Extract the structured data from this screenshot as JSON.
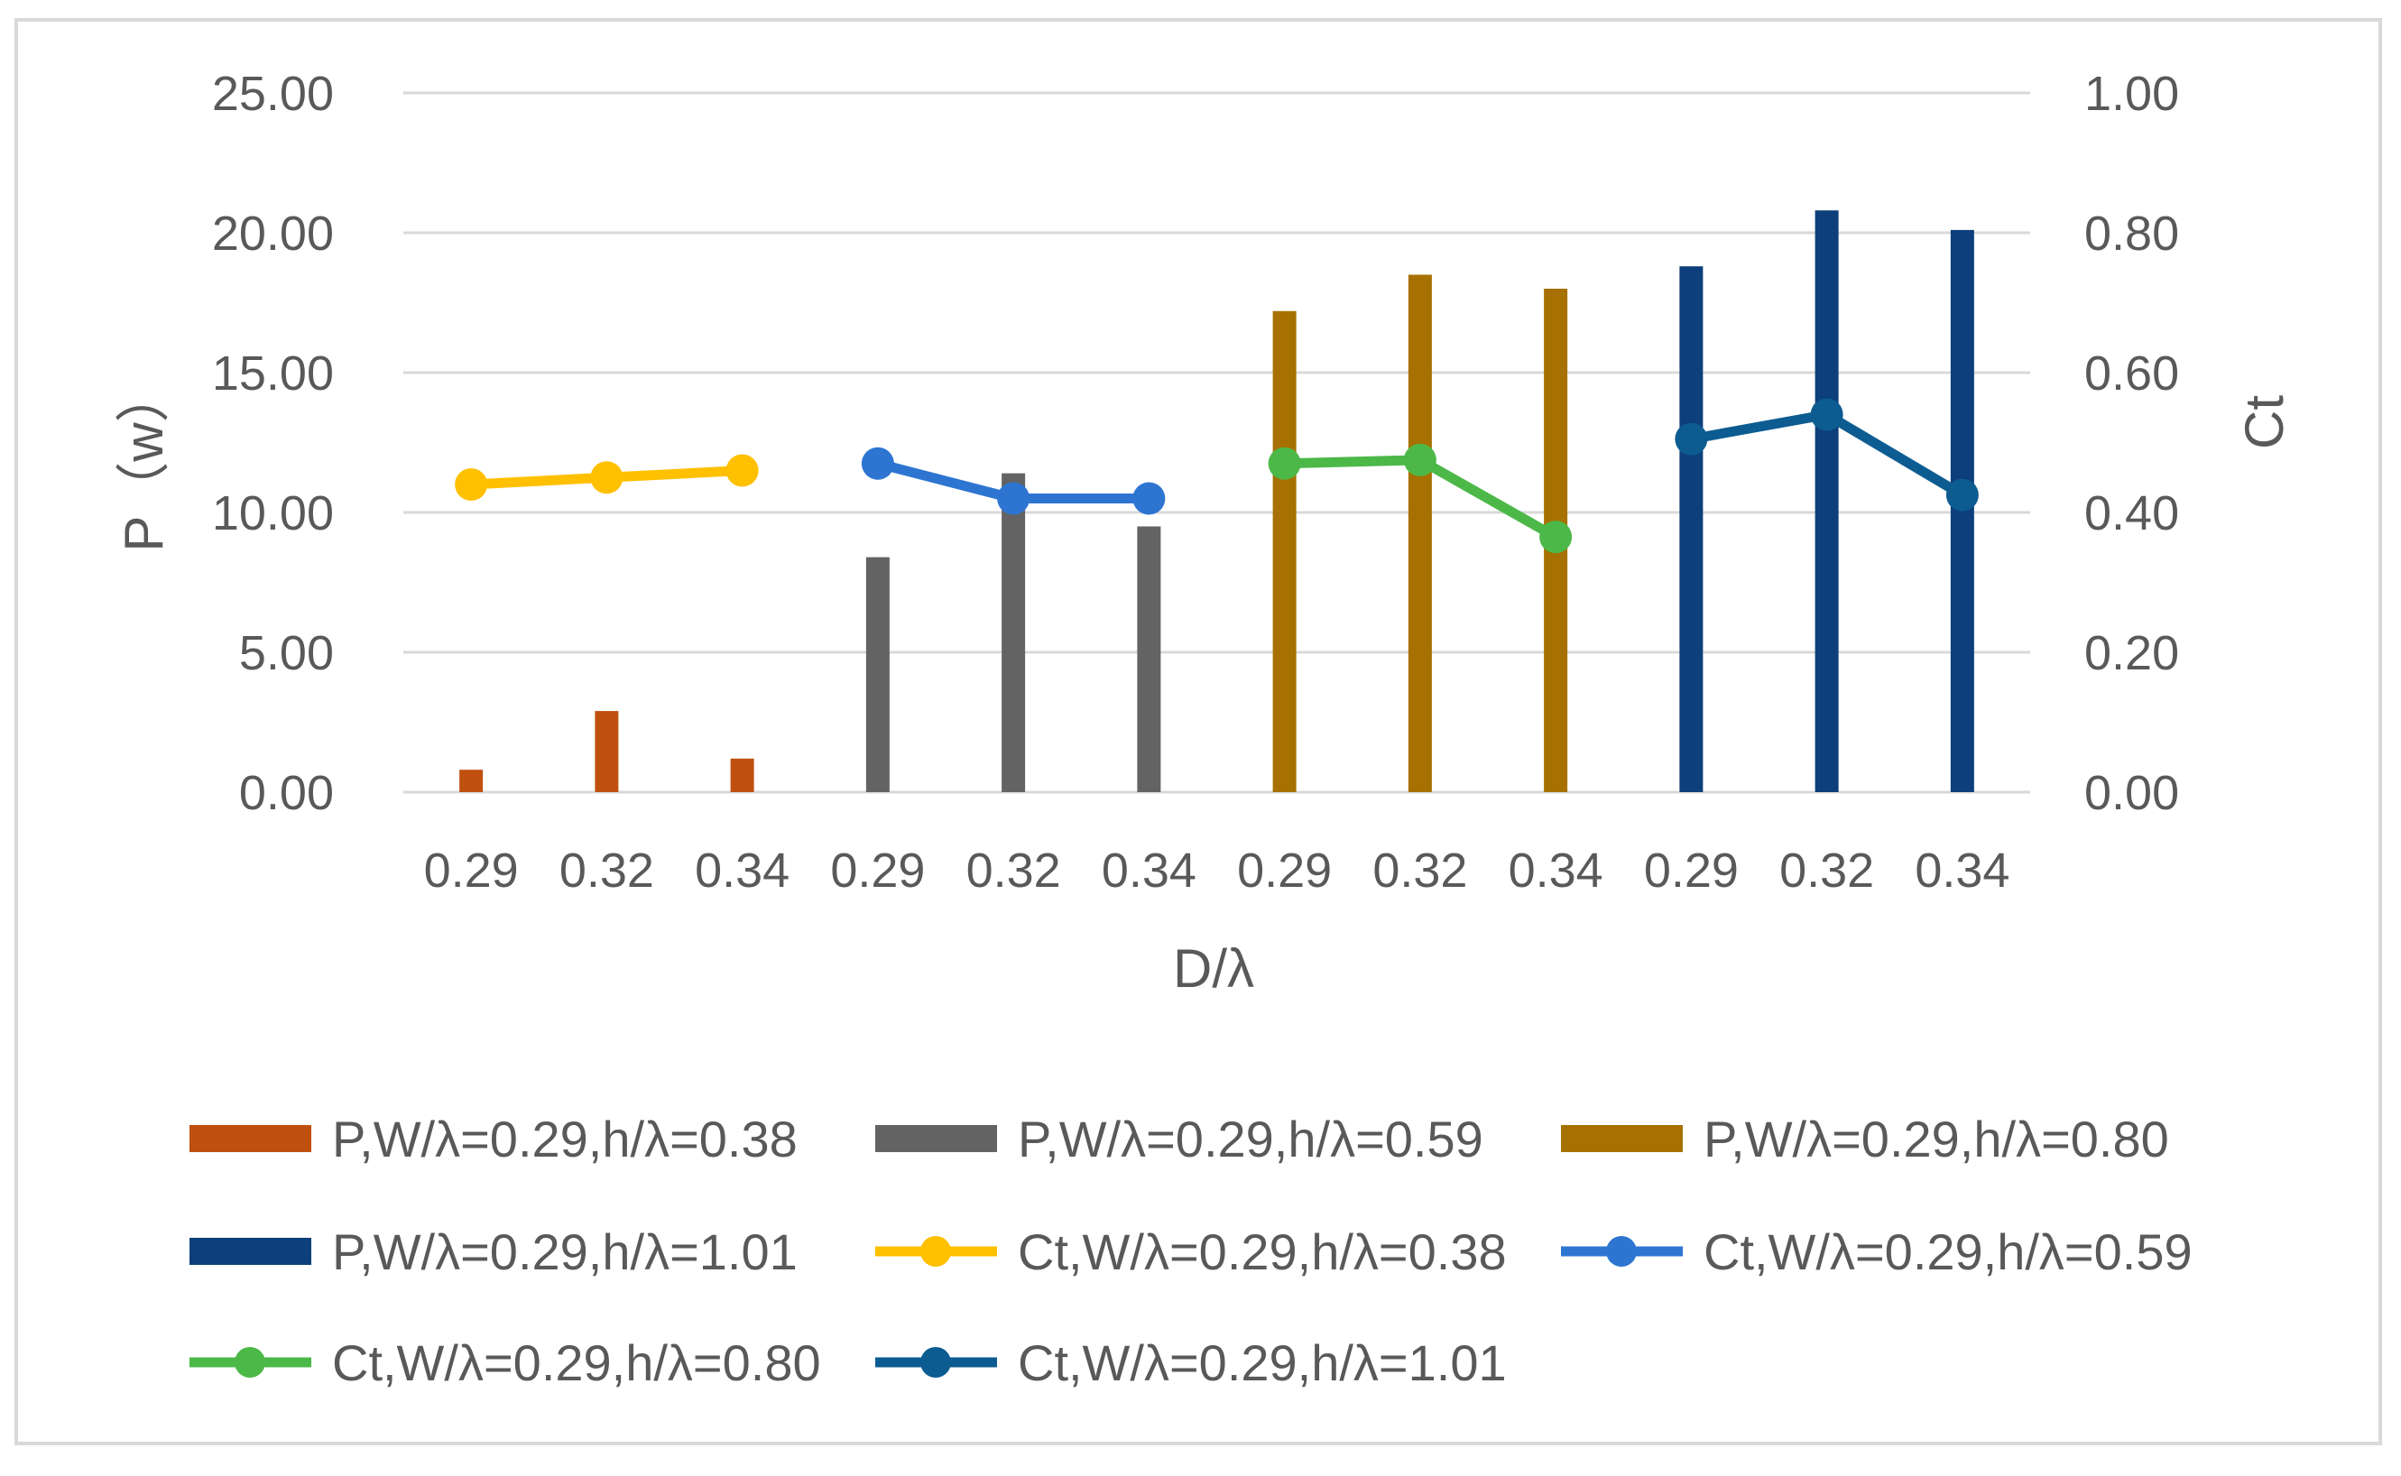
{
  "chart_data": {
    "type": "bar+line",
    "title": "",
    "xlabel": "D/λ",
    "ylabel_left": "P（w）",
    "ylabel_right": "Ct",
    "ylim_left": [
      0,
      25
    ],
    "ylim_right": [
      0,
      1
    ],
    "yticks_left": [
      "0.00",
      "5.00",
      "10.00",
      "15.00",
      "20.00",
      "25.00"
    ],
    "yticks_right": [
      "0.00",
      "0.20",
      "0.40",
      "0.60",
      "0.80",
      "1.00"
    ],
    "yticks_left_values": [
      0,
      5,
      10,
      15,
      20,
      25
    ],
    "yticks_right_values": [
      0,
      0.2,
      0.4,
      0.6,
      0.8,
      1.0
    ],
    "grid": true,
    "legend_position": "bottom",
    "categories": [
      "0.29",
      "0.32",
      "0.34",
      "0.29",
      "0.32",
      "0.34",
      "0.29",
      "0.32",
      "0.34",
      "0.29",
      "0.32",
      "0.34"
    ],
    "bar_series": [
      {
        "name": "P,W/λ=0.29,h/λ=0.38",
        "color": "#C0500F",
        "values": [
          0.8,
          2.9,
          1.2,
          null,
          null,
          null,
          null,
          null,
          null,
          null,
          null,
          null
        ]
      },
      {
        "name": "P,W/λ=0.29,h/λ=0.59",
        "color": "#636363",
        "values": [
          null,
          null,
          null,
          8.4,
          11.4,
          9.5,
          null,
          null,
          null,
          null,
          null,
          null
        ]
      },
      {
        "name": "P,W/λ=0.29,h/λ=0.80",
        "color": "#A67100",
        "values": [
          null,
          null,
          null,
          null,
          null,
          null,
          17.2,
          18.5,
          18.0,
          null,
          null,
          null
        ]
      },
      {
        "name": "P,W/λ=0.29,h/λ=1.01",
        "color": "#0D3F7A",
        "values": [
          null,
          null,
          null,
          null,
          null,
          null,
          null,
          null,
          null,
          18.8,
          20.8,
          20.1
        ]
      }
    ],
    "line_series": [
      {
        "name": "Ct,W/λ=0.29,h/λ=0.38",
        "color": "#FFC000",
        "values": [
          0.44,
          0.45,
          0.46,
          null,
          null,
          null,
          null,
          null,
          null,
          null,
          null,
          null
        ]
      },
      {
        "name": "Ct,W/λ=0.29,h/λ=0.59",
        "color": "#2E75D2",
        "values": [
          null,
          null,
          null,
          0.47,
          0.42,
          0.42,
          null,
          null,
          null,
          null,
          null,
          null
        ]
      },
      {
        "name": "Ct,W/λ=0.29,h/λ=0.80",
        "color": "#4CB848",
        "values": [
          null,
          null,
          null,
          null,
          null,
          null,
          0.47,
          0.475,
          0.365,
          null,
          null,
          null
        ]
      },
      {
        "name": "Ct,W/λ=0.29,h/λ=1.01",
        "color": "#0D5C91",
        "values": [
          null,
          null,
          null,
          null,
          null,
          null,
          null,
          null,
          null,
          0.505,
          0.54,
          0.425
        ]
      }
    ]
  }
}
